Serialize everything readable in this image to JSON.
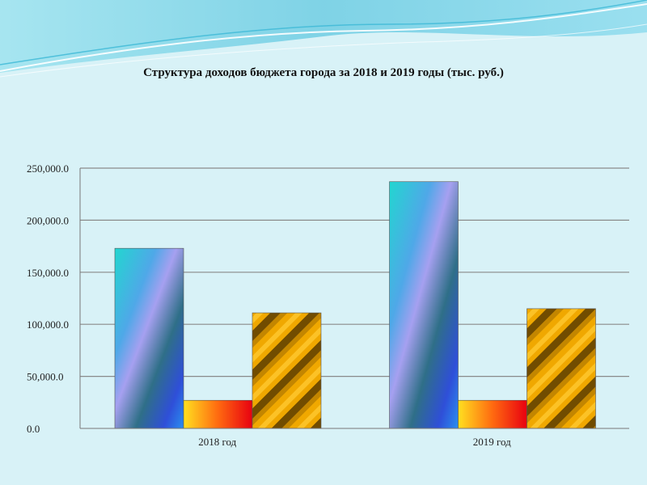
{
  "chart_data": {
    "type": "bar",
    "title": "Структура доходов бюджета города за 2018 и 2019 годы (тыс. руб.)",
    "categories": [
      "2018 год",
      "2019 год"
    ],
    "series": [
      {
        "values": [
          173000,
          237000
        ]
      },
      {
        "values": [
          27000,
          27000
        ]
      },
      {
        "values": [
          111000,
          115000
        ]
      }
    ],
    "ylim": [
      0,
      250000
    ],
    "yticks": [
      "0.0",
      "50,000.0",
      "100,000.0",
      "150,000.0",
      "200,000.0",
      "250,000.0"
    ],
    "grid": true
  }
}
